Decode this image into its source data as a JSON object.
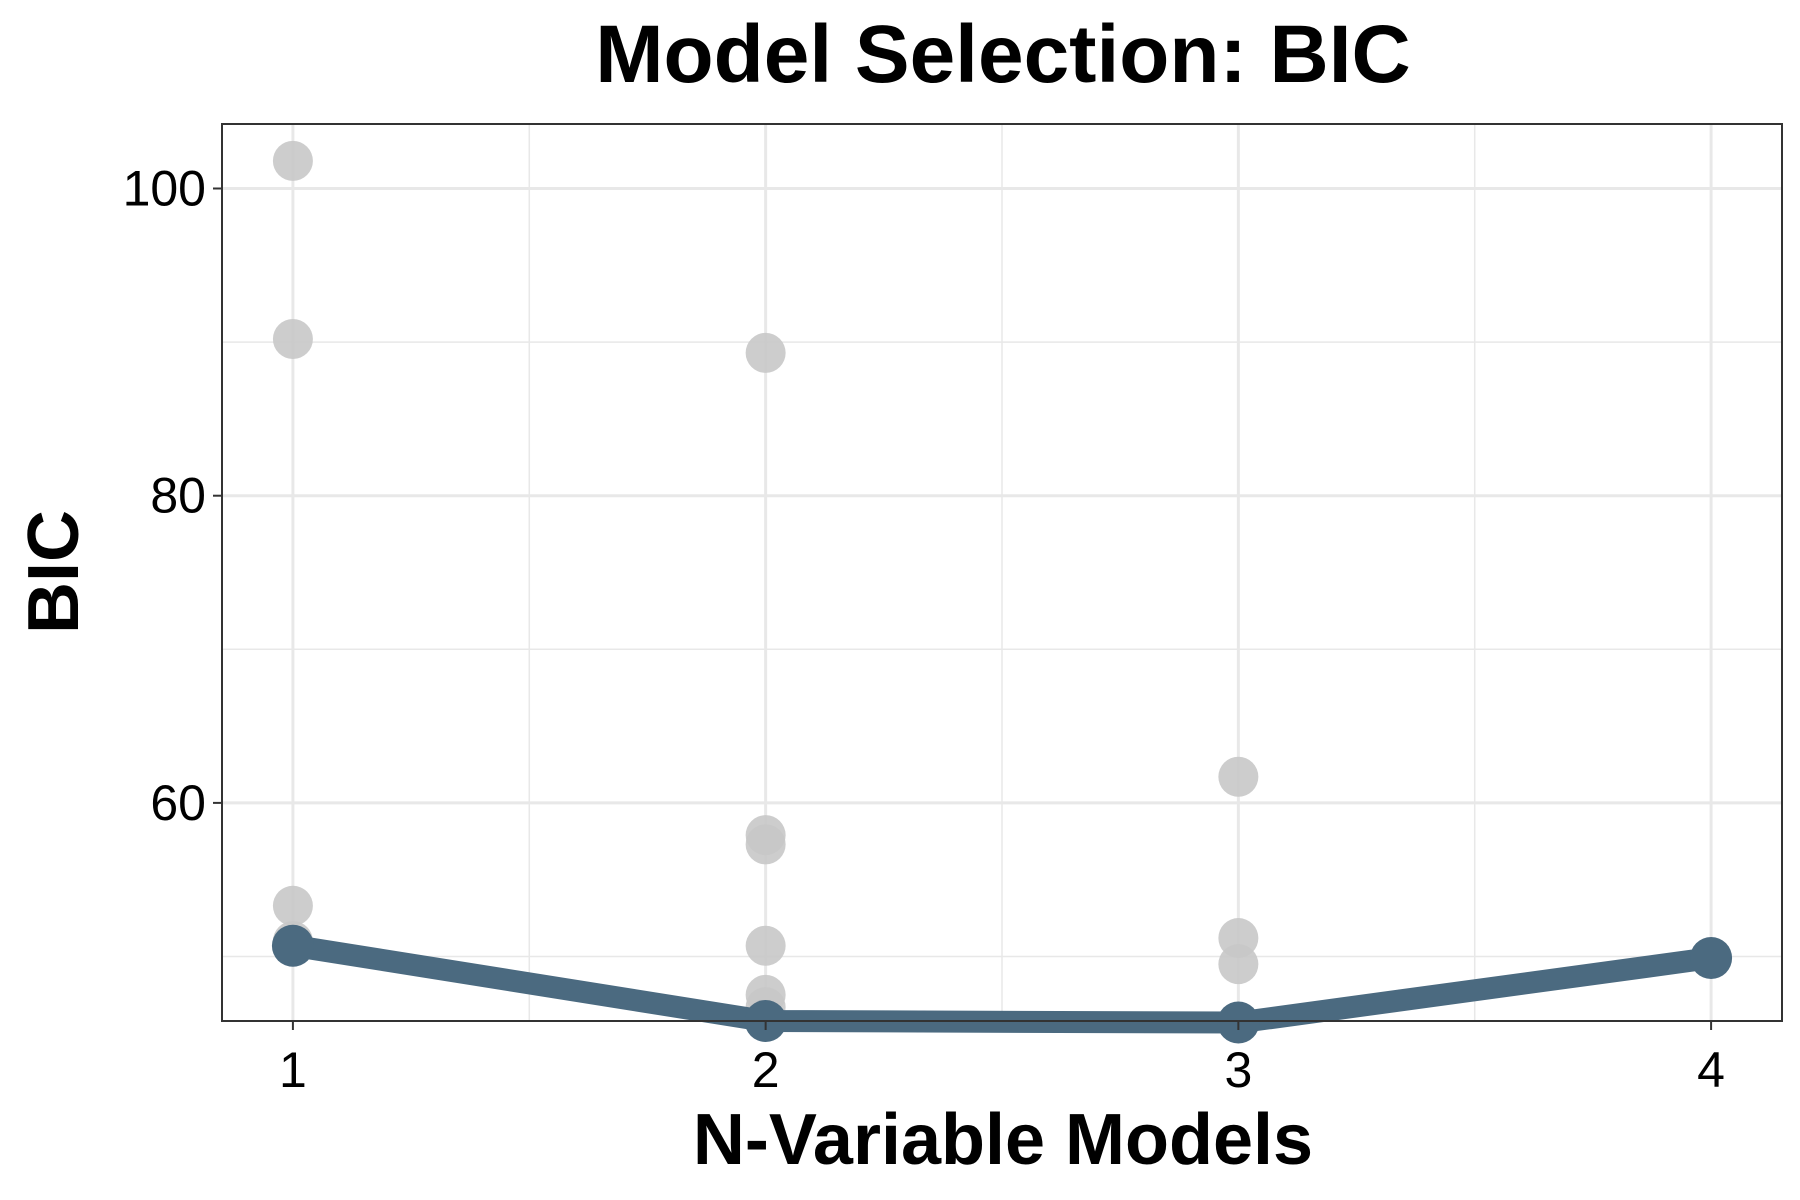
{
  "chart_data": {
    "type": "scatter",
    "title": "Model Selection: BIC",
    "xlabel": "N-Variable Models",
    "ylabel": "BIC",
    "xlim": [
      0.85,
      4.15
    ],
    "ylim": [
      45.8,
      104.2
    ],
    "x_ticks": [
      "1",
      "2",
      "3",
      "4"
    ],
    "y_ticks": [
      "60",
      "80",
      "100"
    ],
    "grid": true,
    "colors": {
      "candidates": "#c8c8c8",
      "best": "#4b6a80",
      "grid": "#e8e8e8",
      "panel_border": "#333333"
    },
    "series": [
      {
        "points": [
          [
            1,
            101.8
          ],
          [
            1,
            90.2
          ],
          [
            1,
            53.3
          ],
          [
            1,
            51.0
          ],
          [
            2,
            89.3
          ],
          [
            2,
            57.9
          ],
          [
            2,
            57.3
          ],
          [
            2,
            50.7
          ],
          [
            2,
            47.5
          ],
          [
            2,
            46.7
          ],
          [
            3,
            61.7
          ],
          [
            3,
            51.2
          ],
          [
            3,
            49.5
          ],
          [
            4,
            49.9
          ]
        ]
      },
      {
        "x": [
          1,
          2,
          3,
          4
        ],
        "y": [
          50.7,
          45.8,
          45.7,
          49.9
        ]
      }
    ]
  }
}
